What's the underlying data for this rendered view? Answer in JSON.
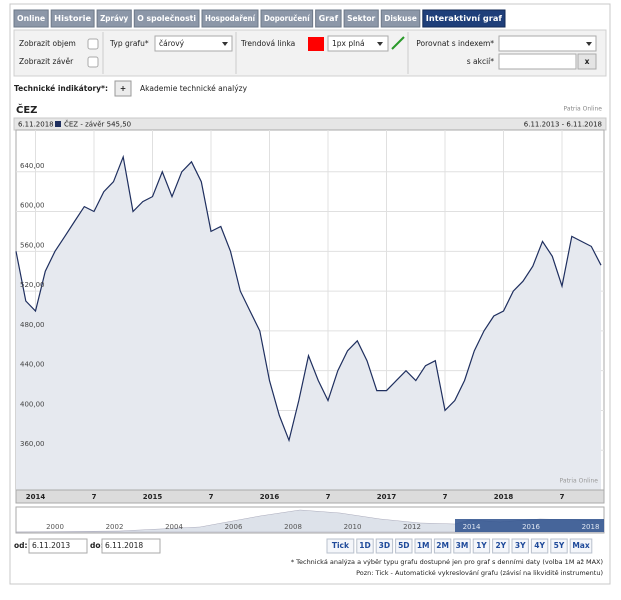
{
  "tabs": [
    "Online",
    "Historie",
    "Zprávy",
    "O společnosti",
    "Hospodaření",
    "Doporučení",
    "Graf",
    "Sektor",
    "Diskuse",
    "Interaktivní graf"
  ],
  "active_tab": 9,
  "controls": {
    "show_volume": "Zobrazit objem",
    "show_close": "Zobrazit závěr",
    "chart_type_label": "Typ grafu*",
    "chart_type_value": "čárový",
    "trend_label": "Trendová linka",
    "trend_color": "#ff0000",
    "trend_style": "1px plná",
    "compare_label": "Porovnat s indexem*",
    "stock_label": "s akcií*",
    "clear": "x"
  },
  "indicators": {
    "label": "Technické indikátory*:",
    "add": "+",
    "academy": "Akademie technické analýzy"
  },
  "chart_data": {
    "type": "line",
    "title": "ČEZ",
    "source": "Patria Online",
    "header_date": "6.11.2018",
    "range_label": "6.11.2013 - 6.11.2018",
    "watermark": "Patria Online",
    "x": [
      "2013-11",
      "2013-12",
      "2014-01",
      "2014-02",
      "2014-03",
      "2014-04",
      "2014-05",
      "2014-06",
      "2014-07",
      "2014-08",
      "2014-09",
      "2014-10",
      "2014-11",
      "2014-12",
      "2015-01",
      "2015-02",
      "2015-03",
      "2015-04",
      "2015-05",
      "2015-06",
      "2015-07",
      "2015-08",
      "2015-09",
      "2015-10",
      "2015-11",
      "2015-12",
      "2016-01",
      "2016-02",
      "2016-03",
      "2016-04",
      "2016-05",
      "2016-06",
      "2016-07",
      "2016-08",
      "2016-09",
      "2016-10",
      "2016-11",
      "2016-12",
      "2017-01",
      "2017-02",
      "2017-03",
      "2017-04",
      "2017-05",
      "2017-06",
      "2017-07",
      "2017-08",
      "2017-09",
      "2017-10",
      "2017-11",
      "2017-12",
      "2018-01",
      "2018-02",
      "2018-03",
      "2018-04",
      "2018-05",
      "2018-06",
      "2018-07",
      "2018-08",
      "2018-09",
      "2018-10",
      "2018-11"
    ],
    "series": [
      {
        "name": "ČEZ - závěr",
        "last_label": "545,50",
        "color": "#1f2f5f",
        "area_color": "#e6e9ef",
        "values": [
          560,
          510,
          500,
          540,
          560,
          575,
          590,
          605,
          600,
          620,
          630,
          655,
          600,
          610,
          615,
          640,
          615,
          640,
          650,
          630,
          580,
          585,
          560,
          520,
          500,
          480,
          430,
          395,
          370,
          410,
          455,
          430,
          410,
          440,
          460,
          470,
          450,
          420,
          420,
          430,
          440,
          430,
          445,
          450,
          400,
          410,
          430,
          460,
          480,
          495,
          500,
          520,
          530,
          545,
          570,
          555,
          525,
          575,
          570,
          565,
          546
        ]
      }
    ],
    "xlim": [
      "2013-11",
      "2018-11"
    ],
    "xticks": [
      {
        "value": "2014-01",
        "label": "2014"
      },
      {
        "value": "2014-07",
        "label": "7"
      },
      {
        "value": "2015-01",
        "label": "2015"
      },
      {
        "value": "2015-07",
        "label": "7"
      },
      {
        "value": "2016-01",
        "label": "2016"
      },
      {
        "value": "2016-07",
        "label": "7"
      },
      {
        "value": "2017-01",
        "label": "2017"
      },
      {
        "value": "2017-07",
        "label": "7"
      },
      {
        "value": "2018-01",
        "label": "2018"
      },
      {
        "value": "2018-07",
        "label": "7"
      }
    ],
    "ylim": [
      320,
      682
    ],
    "yticks": [
      {
        "value": 360,
        "label": "360,00"
      },
      {
        "value": 400,
        "label": "400,00"
      },
      {
        "value": 440,
        "label": "440,00"
      },
      {
        "value": 480,
        "label": "480,00"
      },
      {
        "value": 520,
        "label": "520,00"
      },
      {
        "value": 560,
        "label": "560,00"
      },
      {
        "value": 600,
        "label": "600,00"
      },
      {
        "value": 640,
        "label": "640,00"
      }
    ],
    "grid": true
  },
  "navigator": {
    "labels": [
      "2000",
      "2002",
      "2004",
      "2006",
      "2008",
      "2010",
      "2012",
      "2014",
      "2016",
      "2018"
    ]
  },
  "date_range": {
    "from_label": "od:",
    "from": "6.11.2013",
    "to_label": "do:",
    "to": "6.11.2018"
  },
  "periods": [
    "Tick",
    "1D",
    "3D",
    "5D",
    "1M",
    "2M",
    "3M",
    "1Y",
    "2Y",
    "3Y",
    "4Y",
    "5Y",
    "Max"
  ],
  "notes": [
    "* Technická analýza a výběr typu grafu dostupné jen pro graf s denními daty (volba 1M až MAX)",
    "Pozn: Tick - Automatické vykreslování grafu (závisí na likviditě instrumentu)"
  ]
}
